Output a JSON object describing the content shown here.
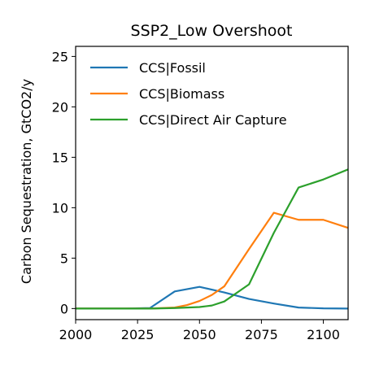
{
  "chart_data": {
    "type": "line",
    "title": "SSP2_Low Overshoot",
    "xlabel": "",
    "ylabel": "Carbon Sequestration, GtCO2/y",
    "xlim": [
      2000,
      2110
    ],
    "ylim": [
      -1.1,
      26.0
    ],
    "xticks": [
      2000,
      2025,
      2050,
      2075,
      2100
    ],
    "yticks": [
      0,
      5,
      10,
      15,
      20,
      25
    ],
    "legend_position": "top-left",
    "grid": false,
    "series": [
      {
        "name": "CCS|Fossil",
        "color": "#1f77b4",
        "x": [
          2000,
          2010,
          2020,
          2030,
          2040,
          2050,
          2060,
          2070,
          2080,
          2090,
          2100,
          2110
        ],
        "y": [
          0,
          0,
          0,
          0.05,
          1.7,
          2.15,
          1.6,
          0.95,
          0.5,
          0.1,
          0.02,
          0
        ]
      },
      {
        "name": "CCS|Biomass",
        "color": "#ff7f0e",
        "x": [
          2000,
          2010,
          2020,
          2030,
          2040,
          2045,
          2050,
          2055,
          2060,
          2070,
          2080,
          2090,
          2100,
          2110
        ],
        "y": [
          0,
          0,
          0,
          0,
          0.1,
          0.35,
          0.75,
          1.35,
          2.2,
          5.9,
          9.5,
          8.8,
          8.8,
          8.0
        ]
      },
      {
        "name": "CCS|Direct Air Capture",
        "color": "#2ca02c",
        "x": [
          2000,
          2010,
          2020,
          2030,
          2040,
          2050,
          2055,
          2060,
          2070,
          2080,
          2090,
          2100,
          2110
        ],
        "y": [
          0,
          0,
          0,
          0,
          0.05,
          0.15,
          0.3,
          0.7,
          2.4,
          7.5,
          12.0,
          12.8,
          13.8
        ]
      }
    ]
  }
}
